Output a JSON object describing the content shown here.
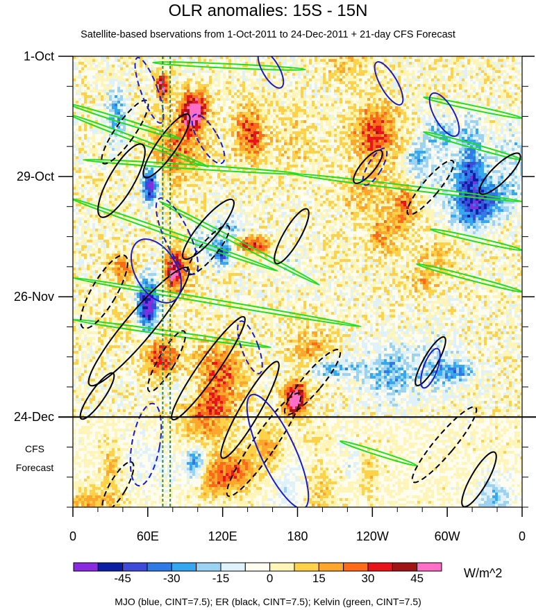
{
  "chart_data": {
    "type": "heatmap",
    "title": "OLR anomalies: 15S - 15N",
    "subtitle": "Satellite-based bservations from 1-Oct-2011 to 24-Dec-2011 + 21-day CFS Forecast",
    "xlabel": "",
    "ylabel": "",
    "x_ticks": [
      "0",
      "60E",
      "120E",
      "180",
      "120W",
      "60W",
      "0"
    ],
    "x_tick_longitudes": [
      0,
      60,
      120,
      180,
      240,
      300,
      360
    ],
    "y_ticks": [
      "1-Oct",
      "29-Oct",
      "26-Nov",
      "24-Dec"
    ],
    "y_tick_days": [
      0,
      28,
      56,
      84
    ],
    "y_range_days": [
      0,
      105
    ],
    "forecast_start_day": 84,
    "forecast_label": [
      "CFS",
      "Forecast"
    ],
    "colorbar": {
      "unit": "W/m^2",
      "tick_labels": [
        "-45",
        "-30",
        "-15",
        "0",
        "15",
        "30",
        "45"
      ],
      "tick_values": [
        -45,
        -30,
        -15,
        0,
        15,
        30,
        45
      ],
      "levels": [
        -52.5,
        -45,
        -37.5,
        -30,
        -22.5,
        -15,
        -7.5,
        0,
        7.5,
        15,
        22.5,
        30,
        37.5,
        45,
        52.5
      ],
      "colors": [
        "#8a2be2",
        "#0a1fa6",
        "#3d4bd8",
        "#2f7be6",
        "#36a8f0",
        "#9cd3f3",
        "#dff2fb",
        "#fffdf0",
        "#fff5b8",
        "#ffd24a",
        "#ffa62e",
        "#ff6a1a",
        "#e8141a",
        "#a01416",
        "#ff6fc8"
      ]
    },
    "reference_lines": [
      {
        "style": "dashed",
        "color": "#2e8b57",
        "longitude": 72
      },
      {
        "style": "dashed",
        "color": "#2e8b57",
        "longitude": 78
      }
    ],
    "contour_legend": "MJO (blue, CINT=7.5); ER (black, CINT=7.5); Kelvin (green, CINT=7.5)",
    "contour_colors": {
      "mjo": "#1a1acc",
      "er": "#000000",
      "kelvin": "#22dd22"
    }
  }
}
